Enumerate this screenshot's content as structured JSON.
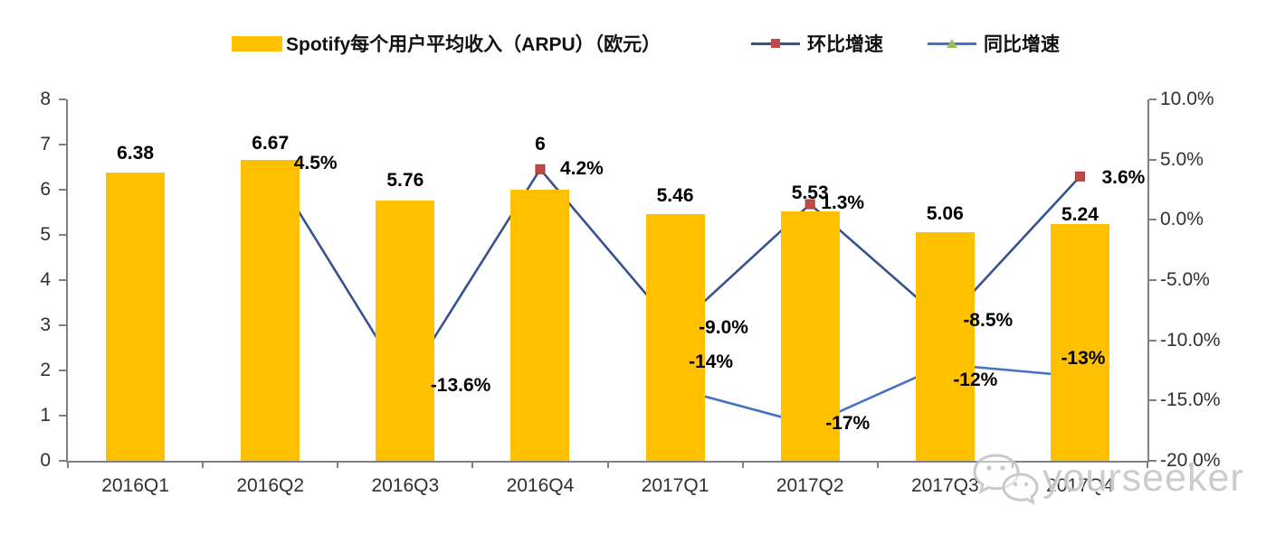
{
  "legend": {
    "items": [
      {
        "label": "Spotify每个用户平均收入（ARPU）（欧元）",
        "marker": "bar-swatch"
      },
      {
        "label": "环比增速",
        "marker": "square-on-line"
      },
      {
        "label": "同比增速",
        "marker": "triangle-on-line"
      }
    ]
  },
  "watermark": {
    "text": "yourseeker",
    "icon": "wechat-icon"
  },
  "colors": {
    "bar": "#FFC000",
    "qoq_line": "#37538F",
    "qoq_marker": "#BE4B48",
    "qoq_marker_stroke": "#9E3B38",
    "yoy_line": "#4472C4",
    "yoy_marker": "#9BBB59",
    "yoy_marker_stroke": "#85A149",
    "axis_line": "#808080",
    "axis_text": "#303030",
    "label_text": "#000000",
    "watermark_gray": "#C8C8C8"
  },
  "chart_data": {
    "type": "bar+line combo",
    "title": "",
    "categories": [
      "2016Q1",
      "2016Q2",
      "2016Q3",
      "2016Q4",
      "2017Q1",
      "2017Q2",
      "2017Q3",
      "2017Q4"
    ],
    "series": [
      {
        "name": "Spotify每个用户平均收入（ARPU）（欧元）",
        "type": "bar",
        "axis": "left",
        "values": [
          6.38,
          6.67,
          5.76,
          6,
          5.46,
          5.53,
          5.06,
          5.24
        ],
        "labels": [
          "6.38",
          "6.67",
          "5.76",
          "6",
          "5.46",
          "5.53",
          "5.06",
          "5.24"
        ],
        "label_dy": [
          -21,
          -18,
          -22,
          -50,
          -20,
          -20,
          -20,
          -10
        ]
      },
      {
        "name": "环比增速",
        "type": "line",
        "axis": "right",
        "marker": "square",
        "values": [
          null,
          4.5,
          -13.6,
          4.2,
          -9.0,
          1.3,
          -8.5,
          3.6
        ],
        "labels": [
          null,
          "4.5%",
          "-13.6%",
          "4.2%",
          "-9.0%",
          "1.3%",
          "-8.5%",
          "3.6%"
        ],
        "label_offsets": [
          null,
          [
            26,
            -2
          ],
          [
            28,
            2
          ],
          [
            22,
            0
          ],
          [
            26,
            0
          ],
          [
            12,
            -1
          ],
          [
            20,
            -2
          ],
          [
            24,
            2
          ]
        ]
      },
      {
        "name": "同比增速",
        "type": "line",
        "axis": "right",
        "marker": "triangle",
        "values": [
          null,
          null,
          null,
          null,
          -14,
          -17,
          -12,
          -13
        ],
        "labels": [
          null,
          null,
          null,
          null,
          "-14%",
          "-17%",
          "-12%",
          "-13%"
        ],
        "label_offsets": [
          null,
          null,
          null,
          null,
          [
            15,
            -29
          ],
          [
            17,
            -1
          ],
          [
            9,
            18
          ],
          [
            -21,
            -20
          ]
        ]
      }
    ],
    "left_axis": {
      "min": 0,
      "max": 8,
      "step": 1,
      "labels": [
        "0",
        "1",
        "2",
        "3",
        "4",
        "5",
        "6",
        "7",
        "8"
      ]
    },
    "right_axis": {
      "min": -20,
      "max": 10,
      "step": 5,
      "labels": [
        "10.0%",
        "5.0%",
        "0.0%",
        "-5.0%",
        "-10.0%",
        "-15.0%",
        "-20.0%"
      ]
    },
    "legend_position": "top",
    "grid": false
  }
}
